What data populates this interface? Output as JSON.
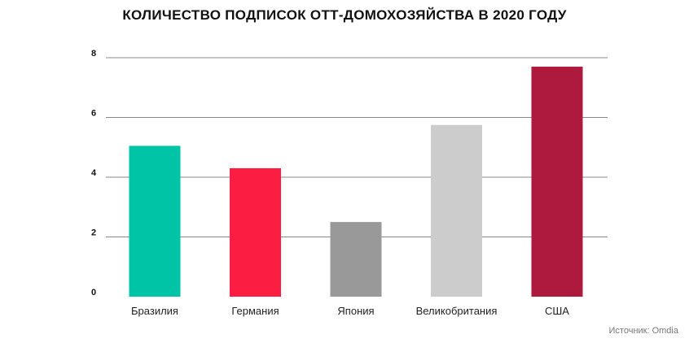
{
  "chart_data": {
    "type": "bar",
    "title": "КОЛИЧЕСТВО ПОДПИСОК ОТТ-ДОМОХОЗЯЙСТВА В 2020 ГОДУ",
    "categories": [
      "Бразилия",
      "Германия",
      "Япония",
      "Великобритания",
      "США"
    ],
    "values": [
      5.05,
      4.3,
      2.5,
      5.75,
      7.7
    ],
    "colors": [
      "#00c4a6",
      "#fb1e42",
      "#999999",
      "#cccccc",
      "#ad1a3d"
    ],
    "ylim": [
      0,
      8
    ],
    "yticks": [
      0,
      2,
      4,
      6,
      8
    ],
    "grid": true,
    "xlabel": "",
    "ylabel": "",
    "source": "Источник: Omdia"
  }
}
